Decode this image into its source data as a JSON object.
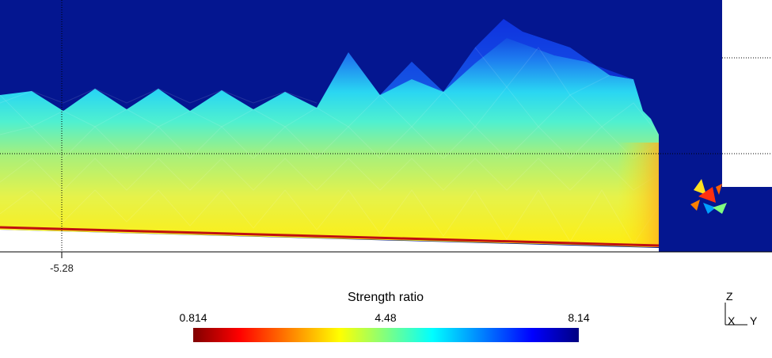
{
  "plot": {
    "x_tick_label": "-5.28"
  },
  "legend": {
    "title": "Strength ratio",
    "min_label": "0.814",
    "mid_label": "4.48",
    "max_label": "8.14",
    "colormap": [
      "#800000",
      "#ff0000",
      "#ff8000",
      "#ffff00",
      "#80ff80",
      "#00ffff",
      "#0080ff",
      "#0000ff",
      "#000080"
    ]
  },
  "triad": {
    "z_label": "Z",
    "x_label": "X",
    "y_label": "Y"
  }
}
